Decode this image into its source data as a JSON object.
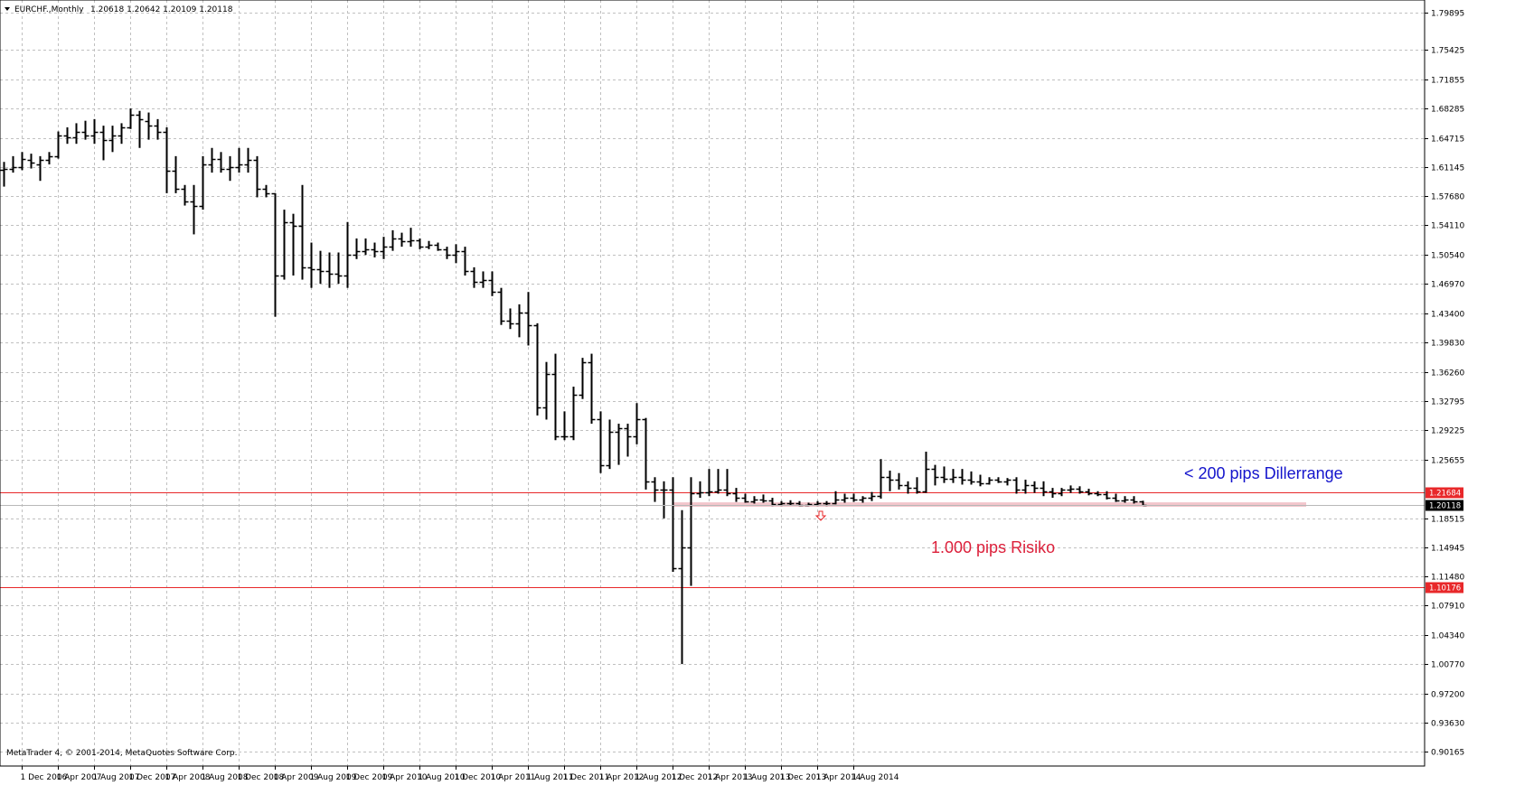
{
  "header": {
    "symbol": "EURCHF.,Monthly",
    "ohlc": "1.20618 1.20642 1.20109 1.20118"
  },
  "copyright": "MetaTrader 4, © 2001-2014, MetaQuotes Software Corp.",
  "colors": {
    "background": "#ffffff",
    "grid": "#c0c0c0",
    "bars": "#000000",
    "level_line": "#e8282a",
    "current_price_badge": "#000000",
    "zone": "#f3c6cc",
    "annotation_blue": "#1414cc",
    "annotation_red": "#dc1f3a"
  },
  "annotations": {
    "dillerrange": "< 200 pips Dillerrange",
    "risiko": "1.000 pips Risiko"
  },
  "chart_data": {
    "type": "ohlc",
    "x_labels": [
      "1 Dec 2006",
      "1 Apr 2007",
      "1 Aug 2007",
      "1 Dec 2007",
      "1 Apr 2008",
      "1 Aug 2008",
      "1 Dec 2008",
      "1 Apr 2009",
      "1 Aug 2009",
      "1 Dec 2009",
      "1 Apr 2010",
      "1 Aug 2010",
      "1 Dec 2010",
      "1 Apr 2011",
      "1 Aug 2011",
      "1 Dec 2011",
      "1 Apr 2012",
      "1 Aug 2012",
      "1 Dec 2012",
      "1 Apr 2013",
      "1 Aug 2013",
      "1 Dec 2013",
      "1 Apr 2014",
      "1 Aug 2014"
    ],
    "y_ticks": [
      "1.79895",
      "1.75425",
      "1.71855",
      "1.68285",
      "1.64715",
      "1.61145",
      "1.57680",
      "1.54110",
      "1.50540",
      "1.46970",
      "1.43400",
      "1.39830",
      "1.36260",
      "1.32795",
      "1.29225",
      "1.25655",
      "1.18515",
      "1.14945",
      "1.11480",
      "1.07910",
      "1.04340",
      "1.00770",
      "0.97200",
      "0.93630",
      "0.90165"
    ],
    "ylim": [
      0.9017,
      1.8125
    ],
    "levels": [
      {
        "value": 1.21684,
        "label": "1.21684"
      },
      {
        "value": 1.10176,
        "label": "1.10176"
      }
    ],
    "current_price": {
      "value": 1.20118,
      "label": "1.20118"
    },
    "start_month": "Oct 2006",
    "bars": [
      {
        "o": 1.608,
        "h": 1.618,
        "l": 1.588,
        "c": 1.61
      },
      {
        "o": 1.61,
        "h": 1.625,
        "l": 1.605,
        "c": 1.612
      },
      {
        "o": 1.612,
        "h": 1.63,
        "l": 1.608,
        "c": 1.622
      },
      {
        "o": 1.62,
        "h": 1.628,
        "l": 1.61,
        "c": 1.617
      },
      {
        "o": 1.615,
        "h": 1.625,
        "l": 1.595,
        "c": 1.62
      },
      {
        "o": 1.62,
        "h": 1.63,
        "l": 1.615,
        "c": 1.625
      },
      {
        "o": 1.625,
        "h": 1.655,
        "l": 1.622,
        "c": 1.65
      },
      {
        "o": 1.65,
        "h": 1.66,
        "l": 1.64,
        "c": 1.648
      },
      {
        "o": 1.648,
        "h": 1.665,
        "l": 1.64,
        "c": 1.655
      },
      {
        "o": 1.655,
        "h": 1.668,
        "l": 1.645,
        "c": 1.65
      },
      {
        "o": 1.65,
        "h": 1.67,
        "l": 1.64,
        "c": 1.655
      },
      {
        "o": 1.655,
        "h": 1.662,
        "l": 1.62,
        "c": 1.645
      },
      {
        "o": 1.645,
        "h": 1.662,
        "l": 1.63,
        "c": 1.65
      },
      {
        "o": 1.65,
        "h": 1.665,
        "l": 1.64,
        "c": 1.66
      },
      {
        "o": 1.66,
        "h": 1.683,
        "l": 1.658,
        "c": 1.675
      },
      {
        "o": 1.675,
        "h": 1.68,
        "l": 1.635,
        "c": 1.67
      },
      {
        "o": 1.668,
        "h": 1.678,
        "l": 1.645,
        "c": 1.662
      },
      {
        "o": 1.662,
        "h": 1.67,
        "l": 1.645,
        "c": 1.655
      },
      {
        "o": 1.655,
        "h": 1.66,
        "l": 1.58,
        "c": 1.607
      },
      {
        "o": 1.607,
        "h": 1.625,
        "l": 1.58,
        "c": 1.585
      },
      {
        "o": 1.585,
        "h": 1.59,
        "l": 1.565,
        "c": 1.57
      },
      {
        "o": 1.57,
        "h": 1.59,
        "l": 1.53,
        "c": 1.565
      },
      {
        "o": 1.565,
        "h": 1.625,
        "l": 1.56,
        "c": 1.615
      },
      {
        "o": 1.615,
        "h": 1.635,
        "l": 1.605,
        "c": 1.622
      },
      {
        "o": 1.622,
        "h": 1.63,
        "l": 1.605,
        "c": 1.61
      },
      {
        "o": 1.61,
        "h": 1.625,
        "l": 1.595,
        "c": 1.612
      },
      {
        "o": 1.612,
        "h": 1.635,
        "l": 1.605,
        "c": 1.615
      },
      {
        "o": 1.615,
        "h": 1.635,
        "l": 1.605,
        "c": 1.62
      },
      {
        "o": 1.62,
        "h": 1.625,
        "l": 1.575,
        "c": 1.585
      },
      {
        "o": 1.585,
        "h": 1.59,
        "l": 1.575,
        "c": 1.58
      },
      {
        "o": 1.58,
        "h": 1.58,
        "l": 1.43,
        "c": 1.48
      },
      {
        "o": 1.48,
        "h": 1.56,
        "l": 1.475,
        "c": 1.545
      },
      {
        "o": 1.545,
        "h": 1.555,
        "l": 1.48,
        "c": 1.54
      },
      {
        "o": 1.54,
        "h": 1.59,
        "l": 1.475,
        "c": 1.49
      },
      {
        "o": 1.49,
        "h": 1.52,
        "l": 1.465,
        "c": 1.488
      },
      {
        "o": 1.488,
        "h": 1.51,
        "l": 1.47,
        "c": 1.485
      },
      {
        "o": 1.485,
        "h": 1.508,
        "l": 1.465,
        "c": 1.482
      },
      {
        "o": 1.482,
        "h": 1.508,
        "l": 1.47,
        "c": 1.48
      },
      {
        "o": 1.48,
        "h": 1.545,
        "l": 1.465,
        "c": 1.505
      },
      {
        "o": 1.505,
        "h": 1.525,
        "l": 1.5,
        "c": 1.51
      },
      {
        "o": 1.51,
        "h": 1.525,
        "l": 1.505,
        "c": 1.512
      },
      {
        "o": 1.512,
        "h": 1.52,
        "l": 1.502,
        "c": 1.51
      },
      {
        "o": 1.51,
        "h": 1.527,
        "l": 1.5,
        "c": 1.515
      },
      {
        "o": 1.515,
        "h": 1.535,
        "l": 1.51,
        "c": 1.525
      },
      {
        "o": 1.525,
        "h": 1.532,
        "l": 1.515,
        "c": 1.522
      },
      {
        "o": 1.522,
        "h": 1.538,
        "l": 1.515,
        "c": 1.523
      },
      {
        "o": 1.523,
        "h": 1.525,
        "l": 1.512,
        "c": 1.515
      },
      {
        "o": 1.515,
        "h": 1.522,
        "l": 1.512,
        "c": 1.517
      },
      {
        "o": 1.517,
        "h": 1.52,
        "l": 1.51,
        "c": 1.512
      },
      {
        "o": 1.512,
        "h": 1.515,
        "l": 1.5,
        "c": 1.505
      },
      {
        "o": 1.505,
        "h": 1.518,
        "l": 1.495,
        "c": 1.51
      },
      {
        "o": 1.51,
        "h": 1.515,
        "l": 1.48,
        "c": 1.485
      },
      {
        "o": 1.485,
        "h": 1.49,
        "l": 1.465,
        "c": 1.472
      },
      {
        "o": 1.472,
        "h": 1.485,
        "l": 1.465,
        "c": 1.475
      },
      {
        "o": 1.475,
        "h": 1.485,
        "l": 1.455,
        "c": 1.46
      },
      {
        "o": 1.46,
        "h": 1.465,
        "l": 1.42,
        "c": 1.425
      },
      {
        "o": 1.425,
        "h": 1.44,
        "l": 1.415,
        "c": 1.422
      },
      {
        "o": 1.422,
        "h": 1.445,
        "l": 1.405,
        "c": 1.435
      },
      {
        "o": 1.435,
        "h": 1.46,
        "l": 1.395,
        "c": 1.42
      },
      {
        "o": 1.42,
        "h": 1.422,
        "l": 1.31,
        "c": 1.32
      },
      {
        "o": 1.32,
        "h": 1.375,
        "l": 1.305,
        "c": 1.36
      },
      {
        "o": 1.36,
        "h": 1.385,
        "l": 1.28,
        "c": 1.285
      },
      {
        "o": 1.285,
        "h": 1.315,
        "l": 1.28,
        "c": 1.285
      },
      {
        "o": 1.285,
        "h": 1.345,
        "l": 1.28,
        "c": 1.335
      },
      {
        "o": 1.335,
        "h": 1.38,
        "l": 1.33,
        "c": 1.375
      },
      {
        "o": 1.375,
        "h": 1.385,
        "l": 1.3,
        "c": 1.305
      },
      {
        "o": 1.305,
        "h": 1.315,
        "l": 1.24,
        "c": 1.25
      },
      {
        "o": 1.25,
        "h": 1.305,
        "l": 1.245,
        "c": 1.29
      },
      {
        "o": 1.29,
        "h": 1.3,
        "l": 1.25,
        "c": 1.295
      },
      {
        "o": 1.295,
        "h": 1.3,
        "l": 1.26,
        "c": 1.285
      },
      {
        "o": 1.285,
        "h": 1.325,
        "l": 1.275,
        "c": 1.305
      },
      {
        "o": 1.305,
        "h": 1.307,
        "l": 1.22,
        "c": 1.23
      },
      {
        "o": 1.23,
        "h": 1.235,
        "l": 1.205,
        "c": 1.22
      },
      {
        "o": 1.22,
        "h": 1.23,
        "l": 1.185,
        "c": 1.22
      },
      {
        "o": 1.22,
        "h": 1.235,
        "l": 1.12,
        "c": 1.125
      },
      {
        "o": 1.125,
        "h": 1.195,
        "l": 1.008,
        "c": 1.15
      },
      {
        "o": 1.15,
        "h": 1.235,
        "l": 1.103,
        "c": 1.215
      },
      {
        "o": 1.215,
        "h": 1.23,
        "l": 1.21,
        "c": 1.217
      },
      {
        "o": 1.217,
        "h": 1.245,
        "l": 1.212,
        "c": 1.218
      },
      {
        "o": 1.218,
        "h": 1.245,
        "l": 1.215,
        "c": 1.22
      },
      {
        "o": 1.22,
        "h": 1.245,
        "l": 1.212,
        "c": 1.215
      },
      {
        "o": 1.215,
        "h": 1.222,
        "l": 1.205,
        "c": 1.21
      },
      {
        "o": 1.21,
        "h": 1.215,
        "l": 1.204,
        "c": 1.206
      },
      {
        "o": 1.206,
        "h": 1.212,
        "l": 1.203,
        "c": 1.208
      },
      {
        "o": 1.208,
        "h": 1.214,
        "l": 1.204,
        "c": 1.207
      },
      {
        "o": 1.207,
        "h": 1.21,
        "l": 1.2,
        "c": 1.202
      },
      {
        "o": 1.202,
        "h": 1.206,
        "l": 1.2,
        "c": 1.204
      },
      {
        "o": 1.204,
        "h": 1.207,
        "l": 1.201,
        "c": 1.203
      },
      {
        "o": 1.203,
        "h": 1.206,
        "l": 1.2,
        "c": 1.201
      },
      {
        "o": 1.201,
        "h": 1.204,
        "l": 1.2,
        "c": 1.202
      },
      {
        "o": 1.202,
        "h": 1.206,
        "l": 1.2,
        "c": 1.203
      },
      {
        "o": 1.203,
        "h": 1.206,
        "l": 1.2,
        "c": 1.204
      },
      {
        "o": 1.204,
        "h": 1.218,
        "l": 1.202,
        "c": 1.208
      },
      {
        "o": 1.208,
        "h": 1.215,
        "l": 1.204,
        "c": 1.21
      },
      {
        "o": 1.21,
        "h": 1.215,
        "l": 1.205,
        "c": 1.208
      },
      {
        "o": 1.208,
        "h": 1.212,
        "l": 1.204,
        "c": 1.21
      },
      {
        "o": 1.21,
        "h": 1.217,
        "l": 1.206,
        "c": 1.212
      },
      {
        "o": 1.212,
        "h": 1.257,
        "l": 1.209,
        "c": 1.235
      },
      {
        "o": 1.235,
        "h": 1.243,
        "l": 1.218,
        "c": 1.232
      },
      {
        "o": 1.232,
        "h": 1.24,
        "l": 1.22,
        "c": 1.225
      },
      {
        "o": 1.225,
        "h": 1.23,
        "l": 1.215,
        "c": 1.222
      },
      {
        "o": 1.222,
        "h": 1.235,
        "l": 1.215,
        "c": 1.218
      },
      {
        "o": 1.218,
        "h": 1.266,
        "l": 1.216,
        "c": 1.245
      },
      {
        "o": 1.245,
        "h": 1.25,
        "l": 1.225,
        "c": 1.235
      },
      {
        "o": 1.235,
        "h": 1.248,
        "l": 1.228,
        "c": 1.233
      },
      {
        "o": 1.233,
        "h": 1.245,
        "l": 1.228,
        "c": 1.235
      },
      {
        "o": 1.235,
        "h": 1.245,
        "l": 1.226,
        "c": 1.232
      },
      {
        "o": 1.232,
        "h": 1.242,
        "l": 1.226,
        "c": 1.23
      },
      {
        "o": 1.23,
        "h": 1.238,
        "l": 1.224,
        "c": 1.228
      },
      {
        "o": 1.228,
        "h": 1.235,
        "l": 1.226,
        "c": 1.232
      },
      {
        "o": 1.232,
        "h": 1.235,
        "l": 1.228,
        "c": 1.23
      },
      {
        "o": 1.23,
        "h": 1.234,
        "l": 1.225,
        "c": 1.232
      },
      {
        "o": 1.232,
        "h": 1.235,
        "l": 1.215,
        "c": 1.22
      },
      {
        "o": 1.22,
        "h": 1.232,
        "l": 1.215,
        "c": 1.225
      },
      {
        "o": 1.225,
        "h": 1.23,
        "l": 1.216,
        "c": 1.222
      },
      {
        "o": 1.222,
        "h": 1.23,
        "l": 1.212,
        "c": 1.218
      },
      {
        "o": 1.218,
        "h": 1.222,
        "l": 1.21,
        "c": 1.215
      },
      {
        "o": 1.215,
        "h": 1.222,
        "l": 1.212,
        "c": 1.22
      },
      {
        "o": 1.22,
        "h": 1.225,
        "l": 1.216,
        "c": 1.221
      },
      {
        "o": 1.221,
        "h": 1.224,
        "l": 1.215,
        "c": 1.218
      },
      {
        "o": 1.218,
        "h": 1.221,
        "l": 1.213,
        "c": 1.215
      },
      {
        "o": 1.215,
        "h": 1.218,
        "l": 1.212,
        "c": 1.214
      },
      {
        "o": 1.214,
        "h": 1.218,
        "l": 1.208,
        "c": 1.21
      },
      {
        "o": 1.21,
        "h": 1.215,
        "l": 1.205,
        "c": 1.207
      },
      {
        "o": 1.207,
        "h": 1.212,
        "l": 1.204,
        "c": 1.208
      },
      {
        "o": 1.208,
        "h": 1.212,
        "l": 1.203,
        "c": 1.206
      },
      {
        "o": 1.20618,
        "h": 1.20642,
        "l": 1.20109,
        "c": 1.20118
      }
    ]
  }
}
